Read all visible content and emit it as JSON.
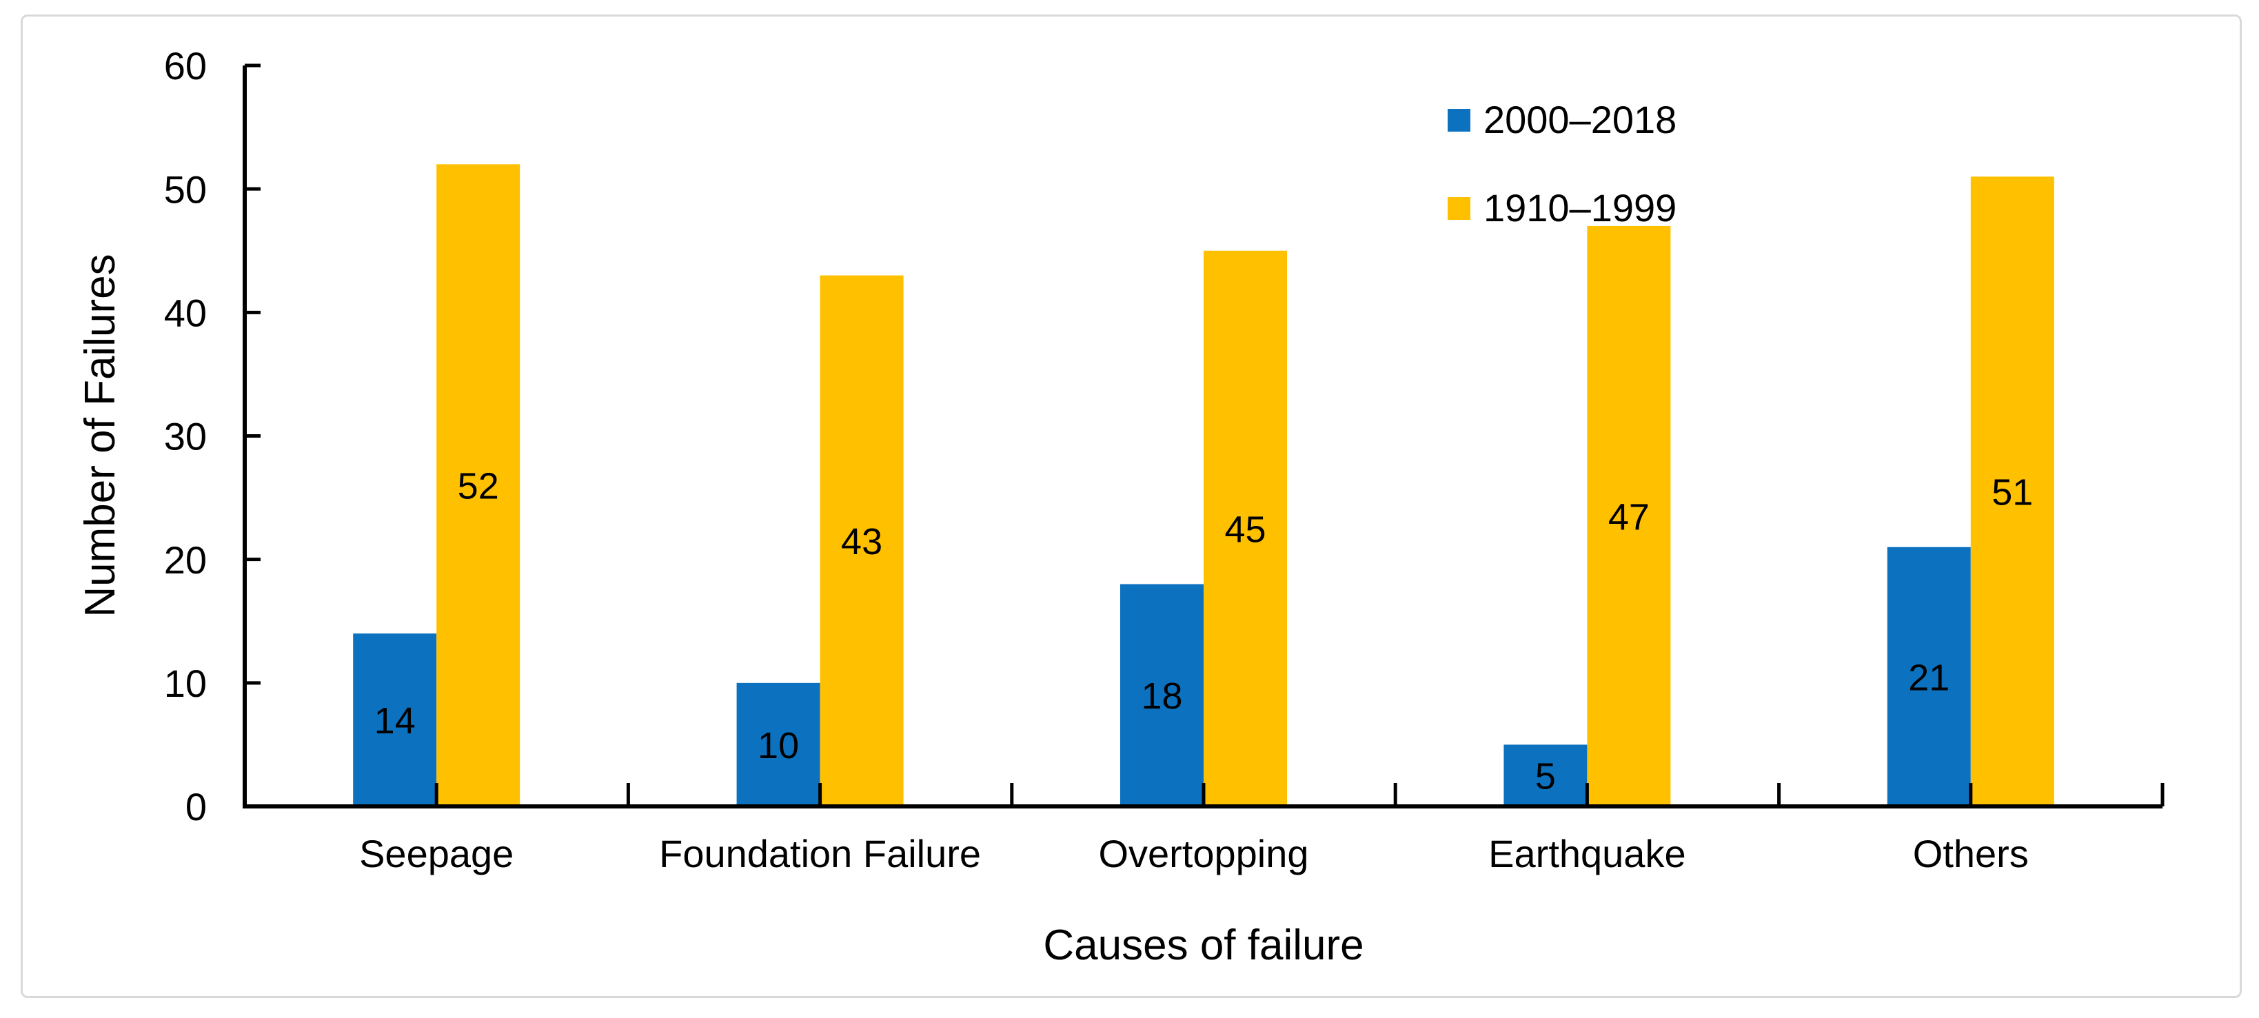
{
  "chart_data": {
    "type": "bar",
    "title": "",
    "categories": [
      "Seepage",
      "Foundation Failure",
      "Overtopping",
      "Earthquake",
      "Others"
    ],
    "series": [
      {
        "name": "2000–2018",
        "color": "#0c72c0",
        "values": [
          14,
          10,
          18,
          5,
          21
        ]
      },
      {
        "name": "1910–1999",
        "color": "#ffc000",
        "values": [
          52,
          43,
          45,
          47,
          51
        ]
      }
    ],
    "xlabel": "Causes of failure",
    "ylabel": "Number of Failures",
    "ylim": [
      0,
      60
    ],
    "yticks": [
      0,
      10,
      20,
      30,
      40,
      50,
      60
    ],
    "grid": false,
    "legend_position": "top-right-inside",
    "data_labels": "inside-center",
    "axis_color": "#000000",
    "text_color": "#000000"
  }
}
